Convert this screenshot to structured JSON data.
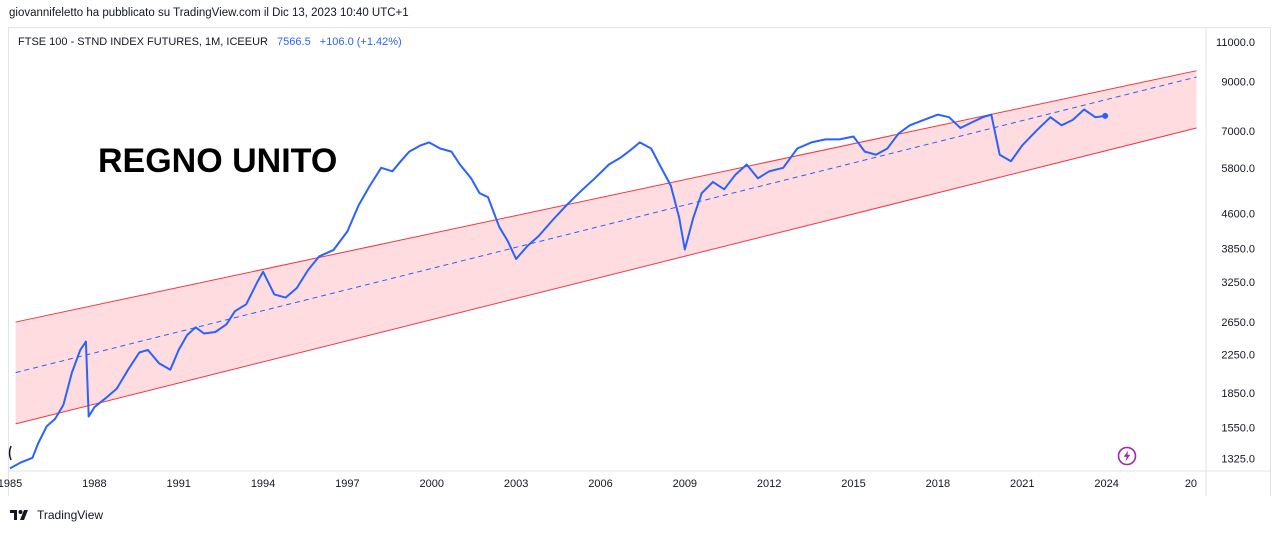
{
  "publisher": "giovannifeletto ha pubblicato su TradingView.com il Dic 13, 2023 10:40 UTC+1",
  "legend": {
    "symbol": "FTSE 100 - STND INDEX FUTURES, 1M, ICEEUR",
    "price": "7566.5",
    "change": "+106.0 (+1.42%)"
  },
  "footer": {
    "brand": "TradingView"
  },
  "icons": {
    "logo": "tradingview-logo-icon",
    "flash": "lightning-icon"
  },
  "colors": {
    "line": "#2962ff",
    "channel": "#f23645",
    "channel_fill": "#ffcdd2"
  },
  "chart_data": {
    "type": "line",
    "scale": "log",
    "annotation": "REGNO UNITO",
    "x_ticks": [
      "1985",
      "1988",
      "1991",
      "1994",
      "1997",
      "2000",
      "2003",
      "2006",
      "2009",
      "2012",
      "2015",
      "2018",
      "2021",
      "2024",
      "20"
    ],
    "y_ticks": [
      "11000.0",
      "9000.0",
      "7000.0",
      "5800.0",
      "4600.0",
      "3850.0",
      "3250.0",
      "2650.0",
      "2250.0",
      "1850.0",
      "1550.0",
      "1325.0"
    ],
    "ylim": [
      1250,
      11800
    ],
    "xlim": [
      1985,
      2027.5
    ],
    "channel": {
      "start": 1985.2,
      "end": 2027.2,
      "upper": [
        2650,
        9500
      ],
      "lower": [
        1580,
        7100
      ],
      "mid": [
        2050,
        9200
      ]
    },
    "series": [
      {
        "x": [
          1985.0,
          1985.4,
          1985.8,
          1986.0,
          1986.3,
          1986.6,
          1986.9,
          1987.2,
          1987.5,
          1987.7,
          1987.8,
          1988.0,
          1988.4,
          1988.8,
          1989.2,
          1989.6,
          1989.9,
          1990.3,
          1990.7,
          1991.0,
          1991.3,
          1991.6,
          1991.9,
          1992.3,
          1992.7,
          1993.0,
          1993.4,
          1993.8,
          1994.0,
          1994.4,
          1994.8,
          1995.2,
          1995.6,
          1996.0,
          1996.5,
          1997.0,
          1997.4,
          1997.8,
          1998.2,
          1998.6,
          1998.9,
          1999.2,
          1999.6,
          1999.9,
          2000.3,
          2000.7,
          2001.0,
          2001.4,
          2001.7,
          2002.0,
          2002.4,
          2002.7,
          2003.0,
          2003.4,
          2003.8,
          2004.3,
          2004.8,
          2005.3,
          2005.8,
          2006.3,
          2006.7,
          2007.0,
          2007.4,
          2007.8,
          2008.1,
          2008.5,
          2008.8,
          2009.0,
          2009.3,
          2009.6,
          2010.0,
          2010.4,
          2010.8,
          2011.2,
          2011.6,
          2012.0,
          2012.5,
          2013.0,
          2013.5,
          2014.0,
          2014.5,
          2015.0,
          2015.4,
          2015.8,
          2016.2,
          2016.6,
          2017.0,
          2017.5,
          2018.0,
          2018.4,
          2018.8,
          2019.2,
          2019.6,
          2019.9,
          2020.2,
          2020.6,
          2021.0,
          2021.5,
          2022.0,
          2022.4,
          2022.8,
          2023.2,
          2023.6,
          2023.95
        ],
        "y": [
          1260,
          1300,
          1330,
          1430,
          1560,
          1620,
          1740,
          2050,
          2300,
          2400,
          1640,
          1720,
          1800,
          1890,
          2080,
          2270,
          2300,
          2150,
          2080,
          2300,
          2480,
          2580,
          2500,
          2520,
          2620,
          2800,
          2900,
          3250,
          3420,
          3050,
          3000,
          3150,
          3450,
          3700,
          3820,
          4200,
          4800,
          5300,
          5800,
          5700,
          6000,
          6300,
          6500,
          6600,
          6400,
          6300,
          5900,
          5500,
          5100,
          5000,
          4300,
          4000,
          3650,
          3900,
          4100,
          4450,
          4800,
          5150,
          5500,
          5900,
          6100,
          6300,
          6600,
          6400,
          5900,
          5300,
          4500,
          3830,
          4500,
          5100,
          5400,
          5200,
          5600,
          5900,
          5500,
          5700,
          5800,
          6400,
          6600,
          6700,
          6700,
          6800,
          6300,
          6200,
          6400,
          6900,
          7200,
          7400,
          7600,
          7500,
          7100,
          7300,
          7500,
          7600,
          6200,
          6000,
          6500,
          7000,
          7500,
          7200,
          7400,
          7800,
          7500,
          7550
        ]
      }
    ]
  }
}
